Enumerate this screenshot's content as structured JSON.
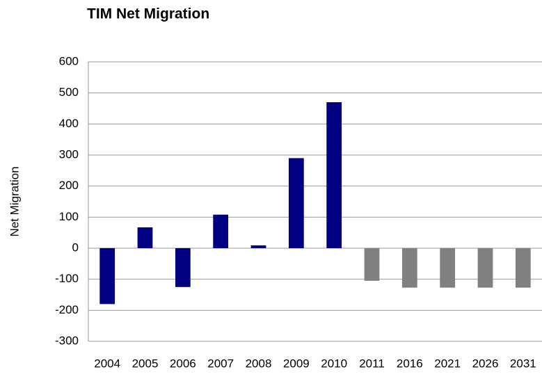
{
  "chart_data": {
    "type": "bar",
    "title": "TIM Net Migration",
    "y_label": "Net Migration",
    "categories": [
      "2004",
      "2005",
      "2006",
      "2007",
      "2008",
      "2009",
      "2010",
      "2011",
      "2016",
      "2021",
      "2026",
      "2031"
    ],
    "values": [
      -180,
      67,
      -125,
      108,
      9,
      290,
      470,
      -105,
      -127,
      -127,
      -127,
      -127
    ],
    "colors": [
      "#000080",
      "#000080",
      "#000080",
      "#000080",
      "#000080",
      "#000080",
      "#000080",
      "#808080",
      "#808080",
      "#808080",
      "#808080",
      "#808080"
    ],
    "ylim": [
      -300,
      600
    ],
    "yticks": [
      -300,
      -200,
      -100,
      0,
      100,
      200,
      300,
      400,
      500,
      600
    ],
    "grid": true
  }
}
